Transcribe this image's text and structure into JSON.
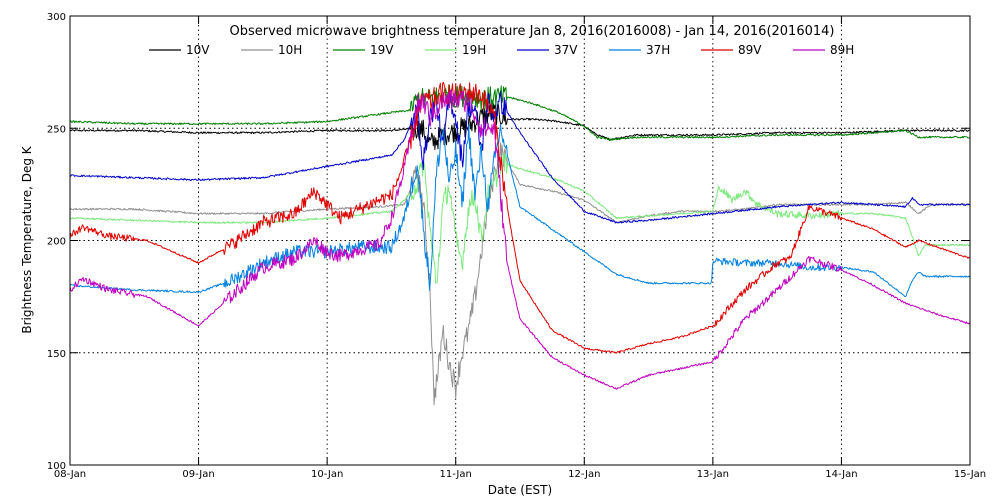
{
  "chart_data": {
    "type": "line",
    "title": "Observed microwave brightness temperature Jan  8, 2016(2016008) - Jan 14, 2016(2016014)",
    "xlabel": "Date (EST)",
    "ylabel": "Brightness Temperature, Deg K",
    "xlim": [
      0,
      7
    ],
    "ylim": [
      100,
      300
    ],
    "x_ticks": [
      {
        "value": 0,
        "label": "08-Jan"
      },
      {
        "value": 1,
        "label": "09-Jan"
      },
      {
        "value": 2,
        "label": "10-Jan"
      },
      {
        "value": 3,
        "label": "11-Jan"
      },
      {
        "value": 4,
        "label": "12-Jan"
      },
      {
        "value": 5,
        "label": "13-Jan"
      },
      {
        "value": 6,
        "label": "14-Jan"
      },
      {
        "value": 7,
        "label": "15-Jan"
      }
    ],
    "y_ticks": [
      {
        "value": 100,
        "label": "100"
      },
      {
        "value": 150,
        "label": "150"
      },
      {
        "value": 200,
        "label": "200"
      },
      {
        "value": 250,
        "label": "250"
      },
      {
        "value": 300,
        "label": "300"
      }
    ],
    "grid": true,
    "legend_position": "top",
    "series": [
      {
        "name": "10V",
        "color": "#000000",
        "x": [
          0,
          0.5,
          1.0,
          1.5,
          2.0,
          2.5,
          2.7,
          2.75,
          2.8,
          2.9,
          3.0,
          3.1,
          3.2,
          3.3,
          3.4,
          3.6,
          3.8,
          4.0,
          4.1,
          4.2,
          4.4,
          4.6,
          4.8,
          5.0,
          5.5,
          6.0,
          6.5,
          6.7,
          7.0
        ],
        "y": [
          249,
          249,
          248,
          248,
          249,
          249,
          250,
          249,
          243,
          247,
          249,
          251,
          255,
          257,
          254,
          254,
          253,
          251,
          247,
          245,
          247,
          247,
          247,
          247,
          248,
          248,
          249,
          249,
          249
        ]
      },
      {
        "name": "10H",
        "color": "#909090",
        "x": [
          0,
          0.5,
          1.0,
          1.5,
          2.0,
          2.4,
          2.6,
          2.7,
          2.75,
          2.8,
          2.83,
          2.86,
          2.9,
          2.95,
          3.0,
          3.05,
          3.1,
          3.15,
          3.2,
          3.25,
          3.3,
          3.35,
          3.5,
          3.75,
          4.0,
          4.25,
          4.5,
          4.75,
          5.0,
          5.25,
          5.5,
          5.75,
          6.0,
          6.25,
          6.5,
          6.6,
          6.7,
          7.0
        ],
        "y": [
          214,
          214,
          212,
          212,
          214,
          215,
          216,
          230,
          215,
          180,
          130,
          140,
          160,
          145,
          135,
          150,
          160,
          175,
          195,
          215,
          230,
          240,
          225,
          222,
          218,
          208,
          211,
          213,
          213,
          214,
          216,
          216,
          216,
          216,
          217,
          212,
          216,
          216
        ]
      },
      {
        "name": "19V",
        "color": "#008000",
        "x": [
          0,
          0.5,
          1.0,
          1.5,
          2.0,
          2.5,
          2.65,
          2.7,
          2.8,
          2.9,
          3.0,
          3.1,
          3.2,
          3.3,
          3.4,
          3.6,
          3.8,
          4.0,
          4.1,
          4.2,
          4.4,
          4.6,
          4.8,
          5.0,
          5.5,
          6.0,
          6.5,
          6.6,
          7.0
        ],
        "y": [
          253,
          252,
          252,
          252,
          253,
          257,
          258,
          263,
          263,
          265,
          264,
          265,
          263,
          264,
          264,
          261,
          257,
          251,
          246,
          245,
          246,
          246,
          246,
          246,
          247,
          247,
          249,
          246,
          246
        ]
      },
      {
        "name": "19H",
        "color": "#7de87d",
        "x": [
          0,
          0.5,
          1.0,
          1.5,
          2.0,
          2.5,
          2.6,
          2.7,
          2.75,
          2.8,
          2.85,
          2.9,
          2.95,
          3.0,
          3.05,
          3.1,
          3.15,
          3.2,
          3.25,
          3.3,
          3.35,
          3.5,
          3.75,
          4.0,
          4.25,
          4.5,
          4.75,
          5.0,
          5.05,
          5.15,
          5.25,
          5.35,
          5.5,
          5.75,
          6.0,
          6.25,
          6.5,
          6.55,
          6.6,
          6.65,
          7.0
        ],
        "y": [
          210,
          209,
          208,
          208,
          210,
          213,
          218,
          225,
          235,
          205,
          180,
          215,
          225,
          200,
          190,
          215,
          220,
          200,
          220,
          225,
          235,
          232,
          228,
          222,
          210,
          211,
          212,
          213,
          224,
          218,
          222,
          216,
          212,
          211,
          212,
          212,
          210,
          202,
          193,
          198,
          198
        ]
      },
      {
        "name": "37V",
        "color": "#0000c8",
        "x": [
          0,
          0.5,
          1.0,
          1.5,
          2.0,
          2.5,
          2.6,
          2.7,
          2.75,
          2.8,
          2.85,
          2.9,
          2.95,
          3.0,
          3.05,
          3.1,
          3.15,
          3.2,
          3.25,
          3.3,
          3.35,
          3.5,
          3.75,
          4.0,
          4.25,
          4.5,
          5.0,
          5.5,
          6.0,
          6.5,
          6.55,
          6.6,
          7.0
        ],
        "y": [
          229,
          228,
          227,
          228,
          233,
          238,
          245,
          258,
          235,
          255,
          262,
          240,
          265,
          255,
          235,
          260,
          258,
          240,
          262,
          256,
          262,
          248,
          228,
          213,
          208,
          209,
          212,
          215,
          217,
          215,
          219,
          216,
          216
        ]
      },
      {
        "name": "37H",
        "color": "#0080e0",
        "x": [
          0,
          0.5,
          1.0,
          1.25,
          1.5,
          1.75,
          2.0,
          2.25,
          2.5,
          2.6,
          2.7,
          2.75,
          2.8,
          2.85,
          2.9,
          2.95,
          3.0,
          3.05,
          3.1,
          3.15,
          3.2,
          3.25,
          3.3,
          3.35,
          3.5,
          3.75,
          4.0,
          4.25,
          4.5,
          4.75,
          4.99,
          5.0,
          5.25,
          5.5,
          5.75,
          6.0,
          6.25,
          6.5,
          6.55,
          6.6,
          6.65,
          7.0
        ],
        "y": [
          180,
          178,
          177,
          182,
          190,
          195,
          195,
          197,
          197,
          210,
          235,
          205,
          180,
          230,
          250,
          225,
          240,
          215,
          250,
          220,
          240,
          215,
          235,
          250,
          215,
          205,
          195,
          185,
          181,
          181,
          181,
          191,
          190,
          190,
          188,
          188,
          186,
          175,
          182,
          186,
          184,
          184
        ]
      },
      {
        "name": "89V",
        "color": "#e00000",
        "x": [
          0,
          0.1,
          0.3,
          0.6,
          1.0,
          1.25,
          1.5,
          1.75,
          1.9,
          2.0,
          2.1,
          2.25,
          2.4,
          2.5,
          2.6,
          2.7,
          2.75,
          2.8,
          2.9,
          3.0,
          3.1,
          3.2,
          3.3,
          3.4,
          3.5,
          3.75,
          4.0,
          4.25,
          4.5,
          4.75,
          5.0,
          5.25,
          5.5,
          5.6,
          5.75,
          6.0,
          6.25,
          6.5,
          6.6,
          7.0
        ],
        "y": [
          202,
          206,
          202,
          200,
          190,
          198,
          208,
          212,
          222,
          216,
          210,
          214,
          218,
          220,
          235,
          255,
          263,
          262,
          266,
          265,
          266,
          265,
          255,
          215,
          182,
          160,
          152,
          150,
          154,
          157,
          162,
          178,
          190,
          192,
          215,
          210,
          205,
          197,
          200,
          192
        ]
      },
      {
        "name": "89H",
        "color": "#c000c0",
        "x": [
          0,
          0.1,
          0.3,
          0.6,
          1.0,
          1.25,
          1.5,
          1.75,
          1.9,
          2.0,
          2.1,
          2.25,
          2.4,
          2.5,
          2.6,
          2.7,
          2.75,
          2.8,
          2.9,
          3.0,
          3.1,
          3.2,
          3.3,
          3.4,
          3.5,
          3.75,
          4.0,
          4.25,
          4.5,
          4.75,
          5.0,
          5.25,
          5.5,
          5.75,
          6.0,
          6.25,
          6.5,
          6.75,
          7.0
        ],
        "y": [
          178,
          183,
          178,
          175,
          162,
          175,
          188,
          192,
          200,
          195,
          193,
          196,
          198,
          210,
          232,
          260,
          262,
          255,
          262,
          263,
          262,
          250,
          250,
          190,
          165,
          148,
          140,
          134,
          140,
          143,
          146,
          165,
          178,
          192,
          187,
          180,
          172,
          167,
          163
        ]
      }
    ]
  }
}
